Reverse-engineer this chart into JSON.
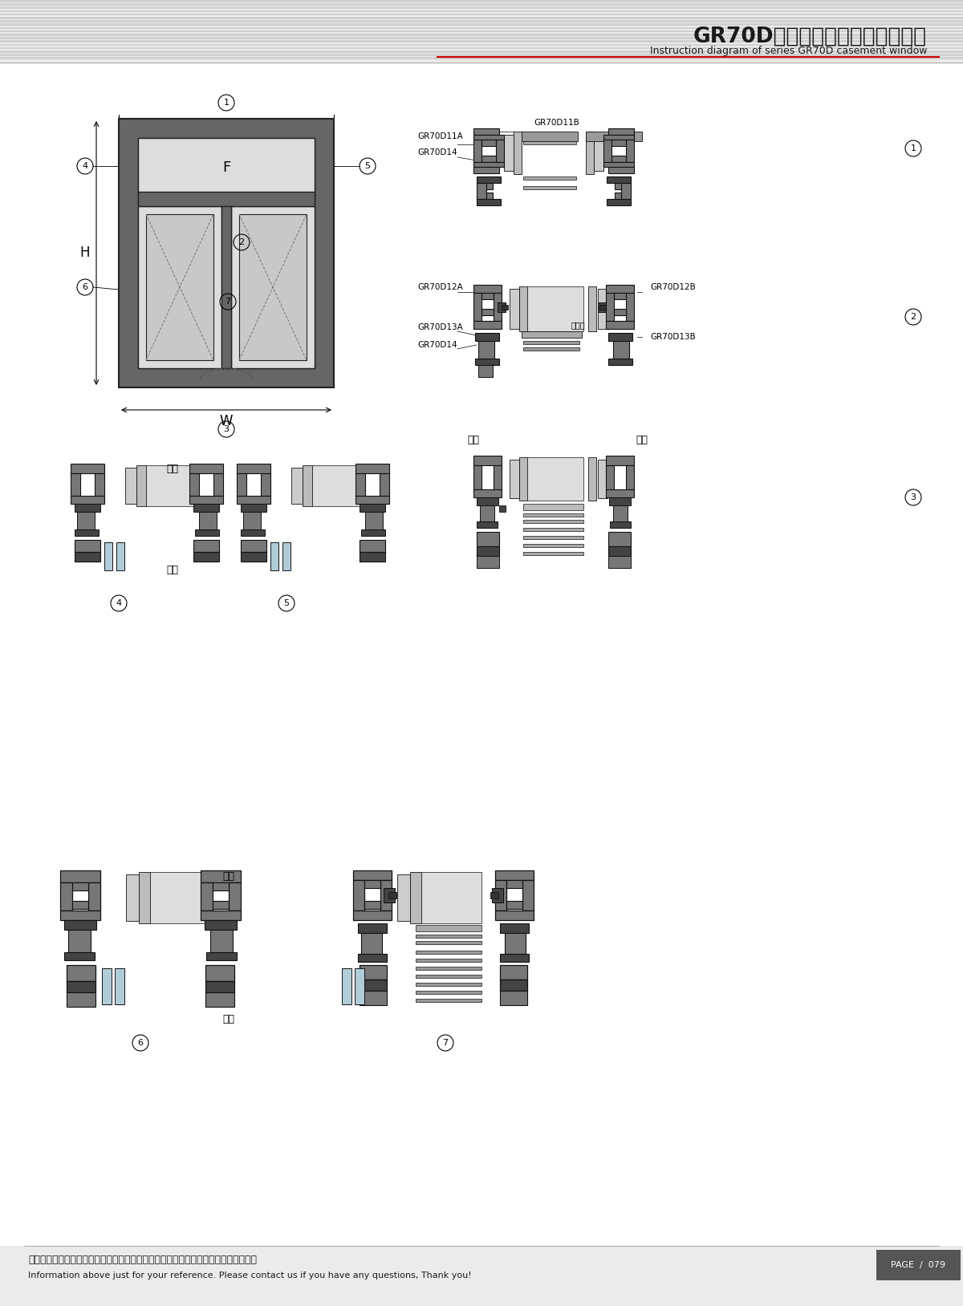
{
  "title_cn": "GR70D系列隔热内开内倒窗结构图",
  "title_en": "Instruction diagram of series GR70D casement window",
  "footer_cn": "图中所示型材截面、装配、编号、尺寸及重量仅供参考。如有疑问，请向本公司查询。",
  "footer_en": "Information above just for your reference. Please contact us if you have any questions, Thank you!",
  "page": "PAGE  /  079",
  "bg_color": "#ebebeb",
  "content_bg": "#ffffff",
  "dark_gray": "#555555",
  "mid_gray": "#888888",
  "light_gray": "#cccccc",
  "black": "#1a1a1a",
  "red": "#cc0000"
}
